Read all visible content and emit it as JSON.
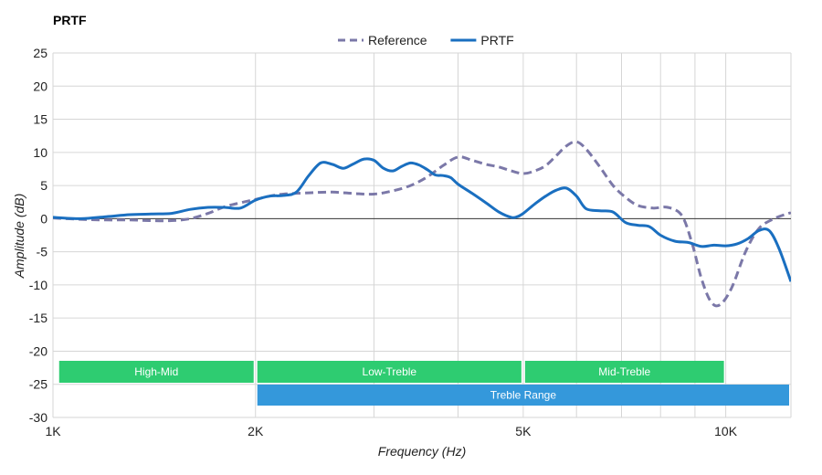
{
  "chart_data": {
    "type": "line",
    "title": "PRTF",
    "xlabel": "Frequency (Hz)",
    "ylabel": "Amplitude (dB)",
    "xscale": "log",
    "xlim": [
      1000,
      12500
    ],
    "ylim": [
      -30,
      25
    ],
    "xticks": [
      {
        "value": 1000,
        "label": "1K"
      },
      {
        "value": 2000,
        "label": "2K"
      },
      {
        "value": 5000,
        "label": "5K"
      },
      {
        "value": 10000,
        "label": "10K"
      }
    ],
    "x_gridlines": [
      2000,
      3000,
      4000,
      5000,
      6000,
      7000,
      8000,
      9000,
      10000
    ],
    "yticks": [
      25,
      20,
      15,
      10,
      5,
      0,
      -5,
      -10,
      -15,
      -20,
      -25,
      -30
    ],
    "legend": {
      "position": "top-center"
    },
    "series": [
      {
        "name": "Reference",
        "color": "#7b78a8",
        "style": "dashed",
        "points": [
          [
            1000,
            0.1
          ],
          [
            1100,
            -0.1
          ],
          [
            1200,
            -0.2
          ],
          [
            1300,
            -0.2
          ],
          [
            1400,
            -0.3
          ],
          [
            1500,
            -0.3
          ],
          [
            1600,
            0.0
          ],
          [
            1700,
            0.8
          ],
          [
            1800,
            1.8
          ],
          [
            1900,
            2.4
          ],
          [
            2000,
            2.9
          ],
          [
            2100,
            3.4
          ],
          [
            2200,
            3.7
          ],
          [
            2400,
            3.9
          ],
          [
            2600,
            4.0
          ],
          [
            2800,
            3.8
          ],
          [
            3000,
            3.7
          ],
          [
            3200,
            4.2
          ],
          [
            3400,
            5.0
          ],
          [
            3600,
            6.3
          ],
          [
            3800,
            8.0
          ],
          [
            4000,
            9.3
          ],
          [
            4200,
            8.8
          ],
          [
            4400,
            8.2
          ],
          [
            4600,
            7.8
          ],
          [
            4800,
            7.2
          ],
          [
            5000,
            6.8
          ],
          [
            5200,
            7.2
          ],
          [
            5400,
            8.0
          ],
          [
            5600,
            9.5
          ],
          [
            5800,
            11.0
          ],
          [
            6000,
            11.6
          ],
          [
            6200,
            10.5
          ],
          [
            6500,
            7.8
          ],
          [
            6800,
            5.0
          ],
          [
            7100,
            3.2
          ],
          [
            7400,
            2.0
          ],
          [
            7800,
            1.6
          ],
          [
            8200,
            1.7
          ],
          [
            8600,
            0.5
          ],
          [
            8900,
            -3.5
          ],
          [
            9200,
            -9.0
          ],
          [
            9500,
            -12.5
          ],
          [
            9800,
            -13.0
          ],
          [
            10200,
            -10.5
          ],
          [
            10700,
            -5.0
          ],
          [
            11200,
            -1.5
          ],
          [
            11800,
            0.0
          ],
          [
            12400,
            0.8
          ],
          [
            12500,
            0.9
          ]
        ]
      },
      {
        "name": "PRTF",
        "color": "#1a6fc0",
        "style": "solid",
        "points": [
          [
            1000,
            0.2
          ],
          [
            1100,
            0.0
          ],
          [
            1200,
            0.3
          ],
          [
            1300,
            0.6
          ],
          [
            1400,
            0.7
          ],
          [
            1500,
            0.8
          ],
          [
            1600,
            1.4
          ],
          [
            1700,
            1.7
          ],
          [
            1800,
            1.7
          ],
          [
            1900,
            1.6
          ],
          [
            2000,
            2.8
          ],
          [
            2100,
            3.4
          ],
          [
            2200,
            3.5
          ],
          [
            2300,
            4.0
          ],
          [
            2400,
            6.5
          ],
          [
            2500,
            8.4
          ],
          [
            2600,
            8.2
          ],
          [
            2700,
            7.6
          ],
          [
            2800,
            8.3
          ],
          [
            2900,
            9.0
          ],
          [
            3000,
            8.8
          ],
          [
            3100,
            7.6
          ],
          [
            3200,
            7.2
          ],
          [
            3300,
            7.9
          ],
          [
            3400,
            8.4
          ],
          [
            3500,
            8.1
          ],
          [
            3600,
            7.4
          ],
          [
            3700,
            6.6
          ],
          [
            3800,
            6.5
          ],
          [
            3900,
            6.2
          ],
          [
            4000,
            5.2
          ],
          [
            4200,
            3.8
          ],
          [
            4400,
            2.4
          ],
          [
            4600,
            1.0
          ],
          [
            4800,
            0.2
          ],
          [
            4900,
            0.3
          ],
          [
            5000,
            0.8
          ],
          [
            5200,
            2.2
          ],
          [
            5400,
            3.4
          ],
          [
            5600,
            4.3
          ],
          [
            5800,
            4.6
          ],
          [
            6000,
            3.4
          ],
          [
            6200,
            1.5
          ],
          [
            6500,
            1.2
          ],
          [
            6800,
            1.0
          ],
          [
            7100,
            -0.6
          ],
          [
            7400,
            -1.0
          ],
          [
            7700,
            -1.2
          ],
          [
            8000,
            -2.5
          ],
          [
            8400,
            -3.4
          ],
          [
            8800,
            -3.6
          ],
          [
            9200,
            -4.2
          ],
          [
            9600,
            -4.0
          ],
          [
            10000,
            -4.1
          ],
          [
            10400,
            -3.8
          ],
          [
            10800,
            -3.0
          ],
          [
            11200,
            -1.8
          ],
          [
            11600,
            -1.8
          ],
          [
            12000,
            -4.5
          ],
          [
            12500,
            -9.5
          ]
        ]
      }
    ],
    "bands": [
      {
        "label": "High-Mid",
        "start": 1015,
        "end": 2000,
        "row": 1,
        "color": "#2ecc71"
      },
      {
        "label": "Low-Treble",
        "start": 2000,
        "end": 5000,
        "row": 1,
        "color": "#2ecc71"
      },
      {
        "label": "Mid-Treble",
        "start": 5000,
        "end": 10000,
        "row": 1,
        "color": "#2ecc71"
      },
      {
        "label": "Treble Range",
        "start": 2000,
        "end": 12500,
        "row": 2,
        "color": "#3498db"
      }
    ]
  }
}
